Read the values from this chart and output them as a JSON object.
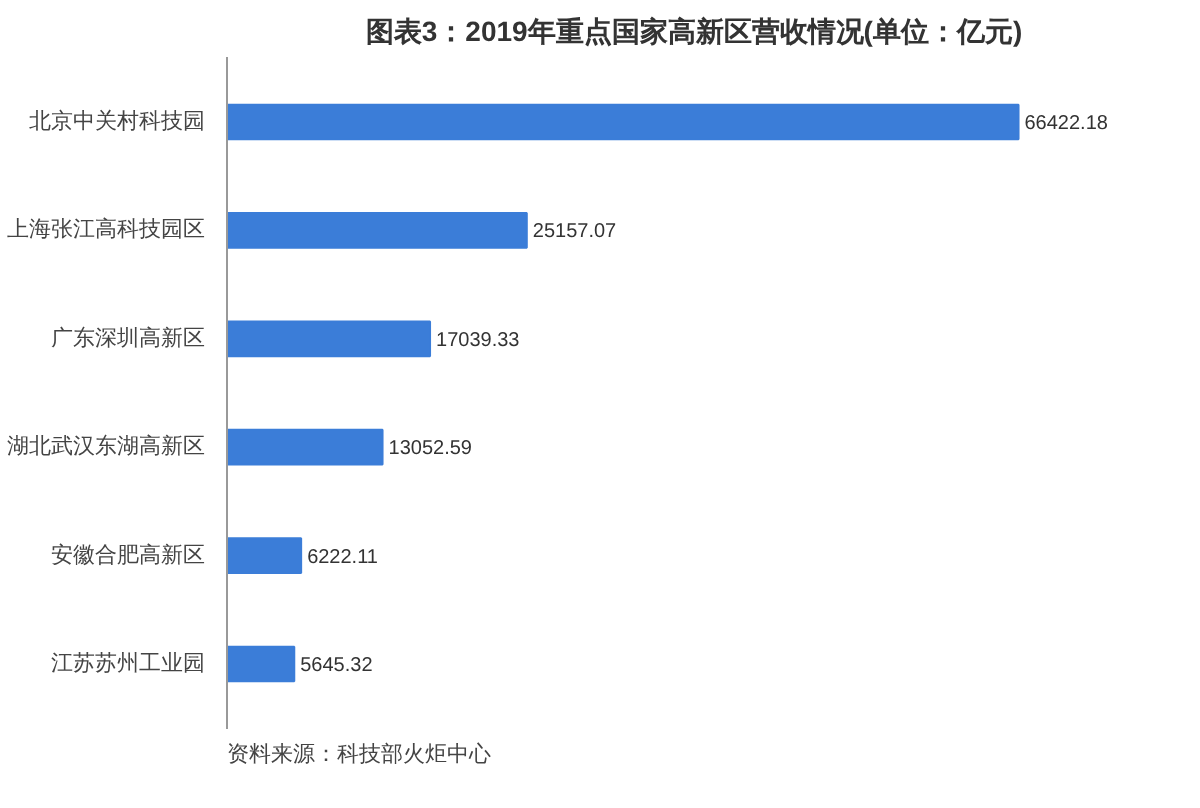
{
  "chart_data": {
    "type": "bar",
    "orientation": "horizontal",
    "title": "图表3：2019年重点国家高新区营收情况(单位：亿元)",
    "categories": [
      "北京中关村科技园",
      "上海张江高科技园区",
      "广东深圳高新区",
      "湖北武汉东湖高新区",
      "安徽合肥高新区",
      "江苏苏州工业园"
    ],
    "values": [
      66422.18,
      25157.07,
      17039.33,
      13052.59,
      6222.11,
      5645.32
    ],
    "color": "#3b7dd8",
    "data_labels": true,
    "grid": false,
    "annotations": [
      "资料来源：科技部火炬中心"
    ]
  }
}
